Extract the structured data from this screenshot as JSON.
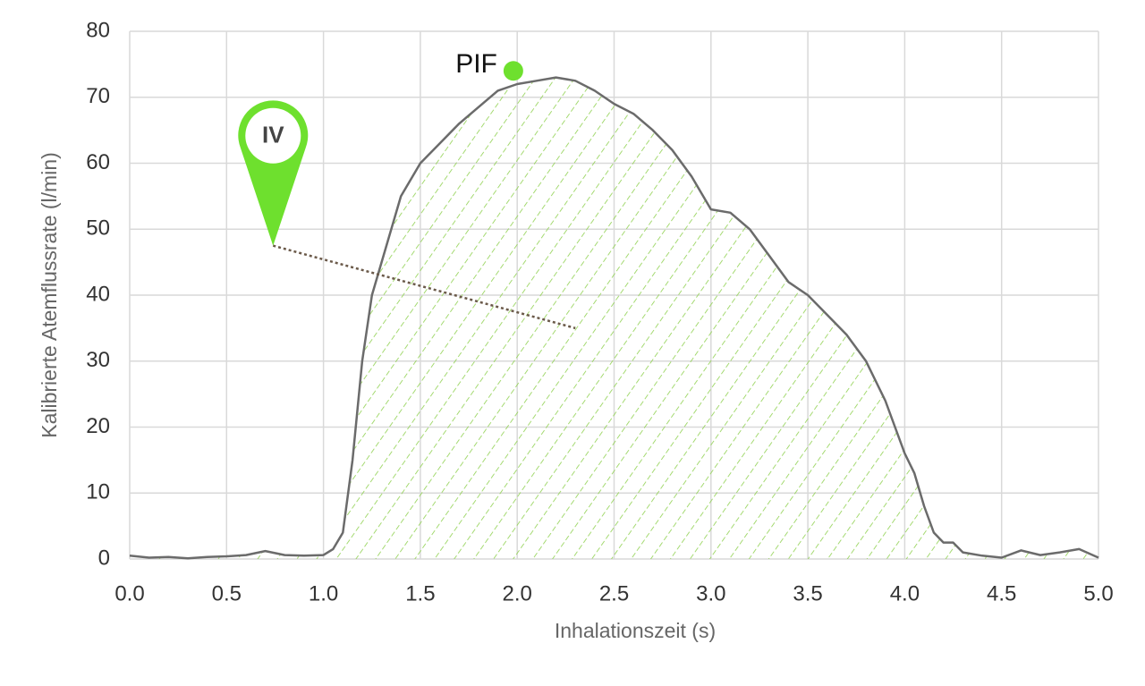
{
  "chart_data": {
    "type": "line",
    "xlabel": "Inhalationszeit (s)",
    "ylabel": "Kalibrierte Atemflussrate (l/min)",
    "x": [
      0.0,
      0.1,
      0.2,
      0.3,
      0.4,
      0.5,
      0.6,
      0.7,
      0.8,
      0.9,
      1.0,
      1.05,
      1.1,
      1.15,
      1.2,
      1.25,
      1.3,
      1.4,
      1.5,
      1.6,
      1.7,
      1.8,
      1.9,
      2.0,
      2.1,
      2.2,
      2.3,
      2.4,
      2.5,
      2.6,
      2.7,
      2.8,
      2.9,
      3.0,
      3.1,
      3.2,
      3.3,
      3.4,
      3.5,
      3.6,
      3.7,
      3.8,
      3.9,
      4.0,
      4.05,
      4.1,
      4.15,
      4.2,
      4.25,
      4.3,
      4.4,
      4.5,
      4.6,
      4.7,
      4.8,
      4.9,
      5.0
    ],
    "values": [
      0.5,
      0.2,
      0.3,
      0.1,
      0.3,
      0.4,
      0.6,
      1.2,
      0.6,
      0.5,
      0.6,
      1.5,
      4,
      15,
      30,
      40,
      45,
      55,
      60,
      63,
      66,
      68.5,
      71,
      72,
      72.5,
      73,
      72.5,
      71,
      69,
      67.5,
      65,
      62,
      58,
      53,
      52.5,
      50,
      46,
      42,
      40,
      37,
      34,
      30,
      24,
      16,
      13,
      8,
      4,
      2.5,
      2.5,
      1,
      0.5,
      0.2,
      1.3,
      0.6,
      1,
      1.5,
      0.2
    ],
    "color": "#6b6b6b",
    "fill_color": "#8fd14f",
    "marker_color": "#6ee02e",
    "xlim": [
      0,
      5
    ],
    "ylim": [
      0,
      80
    ],
    "xticks": [
      {
        "value": 0,
        "label": "0.0"
      },
      {
        "value": 0.5,
        "label": "0.5"
      },
      {
        "value": 1,
        "label": "1.0"
      },
      {
        "value": 1.5,
        "label": "1.5"
      },
      {
        "value": 2,
        "label": "2.0"
      },
      {
        "value": 2.5,
        "label": "2.5"
      },
      {
        "value": 3,
        "label": "3.0"
      },
      {
        "value": 3.5,
        "label": "3.5"
      },
      {
        "value": 4,
        "label": "4.0"
      },
      {
        "value": 4.5,
        "label": "4.5"
      },
      {
        "value": 5,
        "label": "5.0"
      }
    ],
    "yticks": [
      0,
      10,
      20,
      30,
      40,
      50,
      60,
      70,
      80
    ],
    "grid": true,
    "pif": {
      "label": "PIF",
      "x": 1.98,
      "y": 74
    },
    "iv": {
      "label": "IV",
      "x": 0.74,
      "y": 47.5,
      "x2": 2.3,
      "y2": 35
    }
  }
}
